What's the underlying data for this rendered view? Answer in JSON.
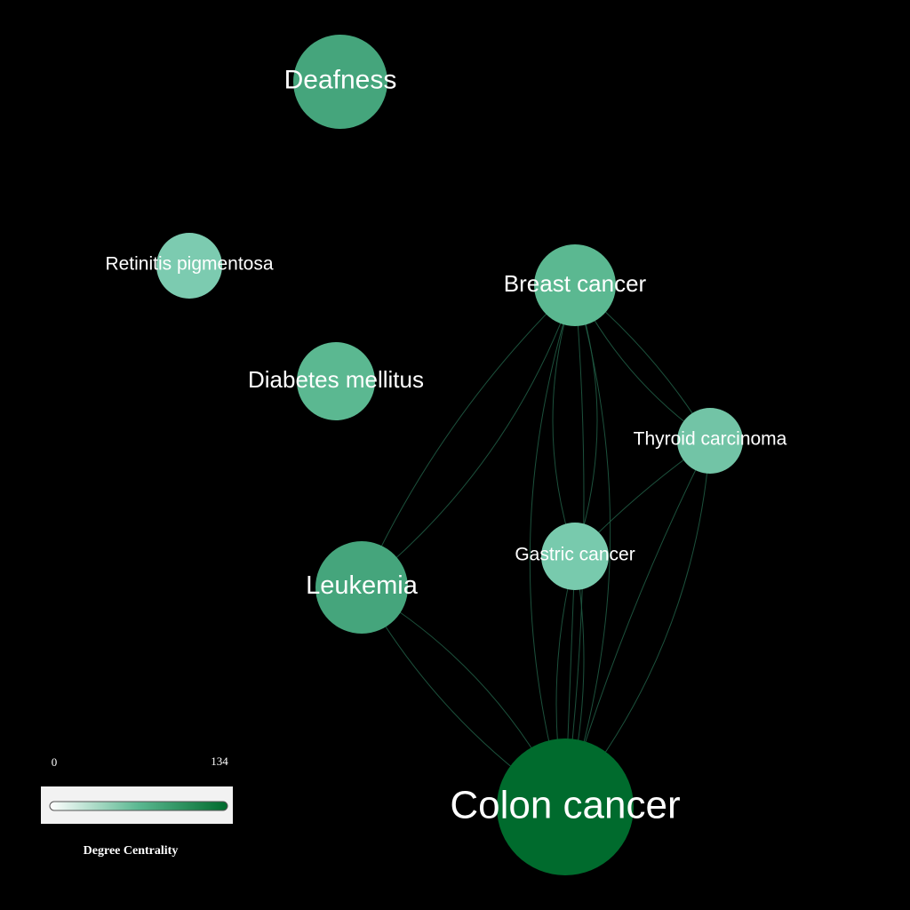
{
  "nodes": [
    {
      "id": "deafness",
      "label": "Deafness",
      "color": "#45a57c"
    },
    {
      "id": "retinitis",
      "label": "Retinitis pigmentosa",
      "color": "#7ccbb0"
    },
    {
      "id": "breast",
      "label": "Breast cancer",
      "color": "#5bb891"
    },
    {
      "id": "diabetes",
      "label": "Diabetes mellitus",
      "color": "#5bb891"
    },
    {
      "id": "thyroid",
      "label": "Thyroid carcinoma",
      "color": "#72c4a6"
    },
    {
      "id": "gastric",
      "label": "Gastric cancer",
      "color": "#78caad"
    },
    {
      "id": "leukemia",
      "label": "Leukemia",
      "color": "#45a57c"
    },
    {
      "id": "colon",
      "label": "Colon cancer",
      "color": "#006b2d"
    }
  ],
  "edges": [
    [
      "breast",
      "leukemia"
    ],
    [
      "breast",
      "thyroid"
    ],
    [
      "breast",
      "gastric"
    ],
    [
      "breast",
      "colon"
    ],
    [
      "leukemia",
      "colon"
    ],
    [
      "gastric",
      "colon"
    ],
    [
      "thyroid",
      "colon"
    ],
    [
      "thyroid",
      "gastric"
    ]
  ],
  "legend": {
    "min": "0",
    "max": "134",
    "title": "Degree Centrality",
    "gradient_start": "#ffffff",
    "gradient_end": "#006b2d"
  },
  "edge_color": "#1f5a42"
}
